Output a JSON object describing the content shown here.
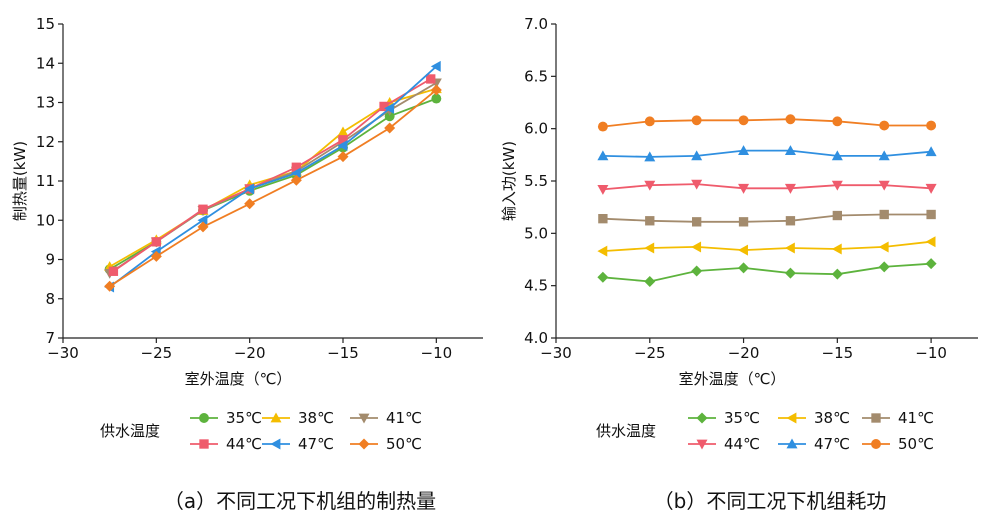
{
  "legend_title": "供水温度",
  "chart_data": [
    {
      "type": "line",
      "caption": "（a）不同工况下机组的制热量",
      "xlabel": "室外温度（℃）",
      "ylabel": "制热量(kW)",
      "xlim": [
        -30,
        -7.5
      ],
      "ylim": [
        7,
        15
      ],
      "xticks": [
        -30,
        -25,
        -20,
        -15,
        -10
      ],
      "xtick_labels": [
        "−30",
        "−25",
        "−20",
        "−15",
        "−10"
      ],
      "yticks": [
        7,
        8,
        9,
        10,
        11,
        12,
        13,
        14,
        15
      ],
      "ytick_labels": [
        "7",
        "8",
        "9",
        "10",
        "11",
        "12",
        "13",
        "14",
        "15"
      ],
      "legend_title": "供水温度",
      "legend_position": "bottom",
      "series": [
        {
          "name": "35℃",
          "color": "#5db33d",
          "marker": "circle",
          "x": [
            -27.5,
            -25,
            -22.5,
            -20,
            -17.5,
            -15,
            -12.5,
            -10
          ],
          "y": [
            8.75,
            9.45,
            10.25,
            10.75,
            11.15,
            11.85,
            12.65,
            13.1
          ]
        },
        {
          "name": "38℃",
          "color": "#f4bd00",
          "marker": "triangle-up",
          "x": [
            -27.5,
            -25,
            -22.5,
            -20,
            -17.5,
            -15,
            -12.5,
            -10
          ],
          "y": [
            8.82,
            9.5,
            10.25,
            10.9,
            11.25,
            12.25,
            13.0,
            13.35
          ]
        },
        {
          "name": "41℃",
          "color": "#a38b6d",
          "marker": "triangle-down",
          "x": [
            -27.5,
            -25,
            -22.5,
            -20,
            -17.5,
            -15,
            -12.5,
            -10
          ],
          "y": [
            8.65,
            9.45,
            10.25,
            10.8,
            11.25,
            12.0,
            12.8,
            13.5
          ]
        },
        {
          "name": "44℃",
          "color": "#ef5b6c",
          "marker": "square",
          "x": [
            -27.3,
            -25,
            -22.5,
            -20,
            -17.5,
            -15,
            -12.8,
            -10.3
          ],
          "y": [
            8.7,
            9.45,
            10.28,
            10.8,
            11.35,
            12.05,
            12.9,
            13.6
          ]
        },
        {
          "name": "47℃",
          "color": "#2f8fe0",
          "marker": "triangle-left",
          "x": [
            -27.5,
            -25,
            -22.5,
            -20,
            -17.5,
            -15,
            -12.5,
            -10
          ],
          "y": [
            8.3,
            9.2,
            10.0,
            10.8,
            11.2,
            11.9,
            12.85,
            13.92
          ]
        },
        {
          "name": "50℃",
          "color": "#f07e23",
          "marker": "diamond",
          "x": [
            -27.5,
            -25,
            -22.5,
            -20,
            -17.5,
            -15,
            -12.5,
            -10
          ],
          "y": [
            8.32,
            9.08,
            9.83,
            10.42,
            11.02,
            11.62,
            12.35,
            13.32
          ]
        }
      ]
    },
    {
      "type": "line",
      "caption": "（b）不同工况下机组耗功",
      "xlabel": "室外温度（℃）",
      "ylabel": "输入功(kW)",
      "xlim": [
        -30,
        -7.5
      ],
      "ylim": [
        4.0,
        7.0
      ],
      "xticks": [
        -30,
        -25,
        -20,
        -15,
        -10
      ],
      "xtick_labels": [
        "−30",
        "−25",
        "−20",
        "−15",
        "−10"
      ],
      "yticks": [
        4.0,
        4.5,
        5.0,
        5.5,
        6.0,
        6.5,
        7.0
      ],
      "ytick_labels": [
        "4.0",
        "4.5",
        "5.0",
        "5.5",
        "6.0",
        "6.5",
        "7.0"
      ],
      "legend_title": "供水温度",
      "legend_position": "bottom",
      "series": [
        {
          "name": "35℃",
          "color": "#5db33d",
          "marker": "diamond",
          "x": [
            -27.5,
            -25,
            -22.5,
            -20,
            -17.5,
            -15,
            -12.5,
            -10
          ],
          "y": [
            4.58,
            4.54,
            4.64,
            4.67,
            4.62,
            4.61,
            4.68,
            4.71
          ]
        },
        {
          "name": "38℃",
          "color": "#f4bd00",
          "marker": "triangle-left",
          "x": [
            -27.5,
            -25,
            -22.5,
            -20,
            -17.5,
            -15,
            -12.5,
            -10
          ],
          "y": [
            4.83,
            4.86,
            4.87,
            4.84,
            4.86,
            4.85,
            4.87,
            4.92
          ]
        },
        {
          "name": "41℃",
          "color": "#a38b6d",
          "marker": "square",
          "x": [
            -27.5,
            -25,
            -22.5,
            -20,
            -17.5,
            -15,
            -12.5,
            -10
          ],
          "y": [
            5.14,
            5.12,
            5.11,
            5.11,
            5.12,
            5.17,
            5.18,
            5.18
          ]
        },
        {
          "name": "44℃",
          "color": "#ef5b6c",
          "marker": "triangle-down",
          "x": [
            -27.5,
            -25,
            -22.5,
            -20,
            -17.5,
            -15,
            -12.5,
            -10
          ],
          "y": [
            5.42,
            5.46,
            5.47,
            5.43,
            5.43,
            5.46,
            5.46,
            5.43
          ]
        },
        {
          "name": "47℃",
          "color": "#2f8fe0",
          "marker": "triangle-up",
          "x": [
            -27.5,
            -25,
            -22.5,
            -20,
            -17.5,
            -15,
            -12.5,
            -10
          ],
          "y": [
            5.74,
            5.73,
            5.74,
            5.79,
            5.79,
            5.74,
            5.74,
            5.78
          ]
        },
        {
          "name": "50℃",
          "color": "#f07e23",
          "marker": "circle",
          "x": [
            -27.5,
            -25,
            -22.5,
            -20,
            -17.5,
            -15,
            -12.5,
            -10
          ],
          "y": [
            6.02,
            6.07,
            6.08,
            6.08,
            6.09,
            6.07,
            6.03,
            6.03
          ]
        }
      ]
    }
  ]
}
